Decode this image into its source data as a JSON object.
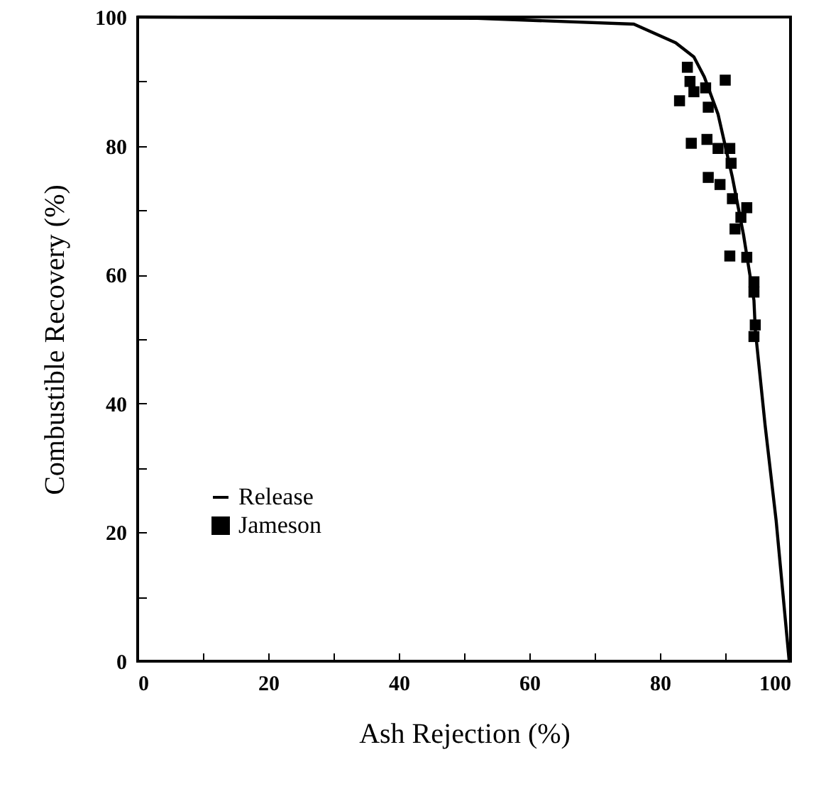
{
  "chart_data": {
    "type": "line",
    "xlabel": "Ash Rejection (%)",
    "ylabel": "Combustible Recovery (%)",
    "xlim": [
      0,
      100
    ],
    "ylim": [
      0,
      100
    ],
    "xticks": [
      0,
      {
        "value": 10,
        "label": null
      },
      20,
      {
        "value": 30,
        "label": null
      },
      40,
      {
        "value": 50,
        "label": null
      },
      60,
      {
        "value": 70,
        "label": null
      },
      80,
      {
        "value": 90,
        "label": null
      },
      100
    ],
    "yticks": [
      0,
      {
        "value": 10,
        "label": null
      },
      20,
      {
        "value": 30,
        "label": null
      },
      40,
      {
        "value": 50,
        "label": null
      },
      60,
      {
        "value": 70,
        "label": null
      },
      80,
      {
        "value": 90,
        "label": null
      },
      100
    ],
    "grid": false,
    "legend": "left",
    "series": [
      {
        "name": "Release",
        "color": "#000000",
        "marker": "none",
        "line_style": "solid",
        "x": [
          0,
          52,
          76,
          82.4,
          85.2,
          86.8,
          88.9,
          91.1,
          92.8,
          94.4,
          94.6,
          96.1,
          97.8,
          99.8
        ],
        "values": [
          100,
          99.8,
          98.9,
          96,
          93.8,
          90.7,
          84.9,
          75.1,
          66.2,
          56,
          51.5,
          36.7,
          21.8,
          0
        ]
      },
      {
        "name": "Jameson",
        "type": "scatter",
        "color": "#000000",
        "marker": "square",
        "x": [
          84.2,
          84.6,
          83,
          85.2,
          87,
          90,
          87.4,
          84.8,
          87.2,
          88.9,
          90.7,
          90.9,
          87.4,
          89.2,
          91.1,
          93.3,
          91.5,
          92.4,
          90.7,
          93.3,
          94.4,
          94.4,
          94.6,
          94.4
        ],
        "values": [
          92.2,
          90,
          87,
          88.4,
          89,
          90.2,
          86,
          80.4,
          81,
          79.6,
          79.6,
          77.3,
          75.1,
          74,
          71.8,
          70.4,
          67.1,
          68.9,
          62.9,
          62.7,
          58.9,
          57.3,
          52.2,
          50.4
        ]
      }
    ]
  }
}
